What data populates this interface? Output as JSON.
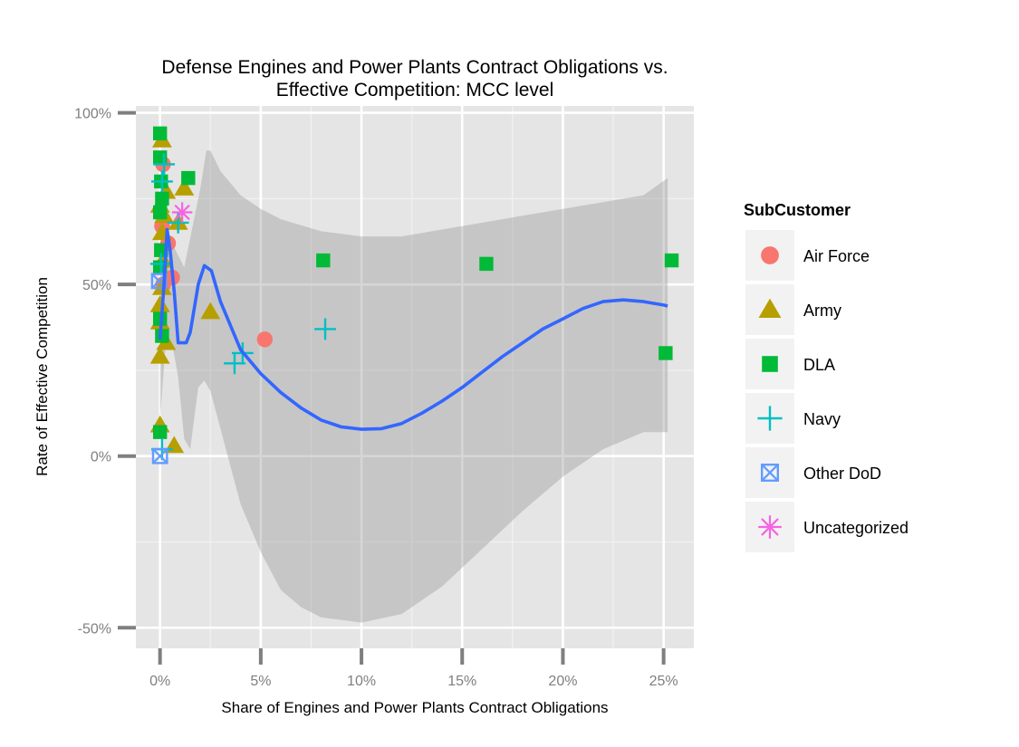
{
  "chart_data": {
    "type": "scatter",
    "title_lines": [
      "Defense Engines and Power Plants Contract Obligations vs.",
      "Effective Competition: MCC level"
    ],
    "xlabel": "Share of Engines and Power Plants Contract Obligations",
    "ylabel": "Rate of Effective Competition",
    "xlim": [
      -0.012,
      0.265
    ],
    "ylim": [
      -0.56,
      1.02
    ],
    "x_ticks": [
      {
        "value": 0.0,
        "label": "0%"
      },
      {
        "value": 0.05,
        "label": "5%"
      },
      {
        "value": 0.1,
        "label": "10%"
      },
      {
        "value": 0.15,
        "label": "15%"
      },
      {
        "value": 0.2,
        "label": "20%"
      },
      {
        "value": 0.25,
        "label": "25%"
      }
    ],
    "y_ticks": [
      {
        "value": -0.5,
        "label": "-50%"
      },
      {
        "value": 0.0,
        "label": "0%"
      },
      {
        "value": 0.5,
        "label": "50%"
      },
      {
        "value": 1.0,
        "label": "100%"
      }
    ],
    "grid": true,
    "legend_position": "right",
    "legend_title": "SubCustomer",
    "series": [
      {
        "name": "Air Force",
        "shape": "circle",
        "color": "#F8766D",
        "points": [
          [
            0.0015,
            0.85
          ],
          [
            0.001,
            0.67
          ],
          [
            0.004,
            0.62
          ],
          [
            0.006,
            0.52
          ],
          [
            0.0015,
            0.5
          ],
          [
            0.052,
            0.34
          ]
        ]
      },
      {
        "name": "Army",
        "shape": "triangle",
        "color": "#B79F00",
        "points": [
          [
            0.001,
            0.92
          ],
          [
            0.012,
            0.78
          ],
          [
            0.003,
            0.77
          ],
          [
            0.0,
            0.73
          ],
          [
            0.002,
            0.7
          ],
          [
            0.001,
            0.65
          ],
          [
            0.0015,
            0.57
          ],
          [
            0.001,
            0.49
          ],
          [
            0.0,
            0.44
          ],
          [
            0.0,
            0.39
          ],
          [
            0.003,
            0.33
          ],
          [
            0.0,
            0.29
          ],
          [
            0.0,
            0.09
          ],
          [
            0.007,
            0.03
          ],
          [
            0.025,
            0.42
          ],
          [
            0.009,
            0.68
          ]
        ]
      },
      {
        "name": "DLA",
        "shape": "square",
        "color": "#00BA38",
        "points": [
          [
            0.0,
            0.94
          ],
          [
            0.0,
            0.87
          ],
          [
            0.0005,
            0.8
          ],
          [
            0.001,
            0.75
          ],
          [
            0.0,
            0.71
          ],
          [
            0.0005,
            0.6
          ],
          [
            0.0,
            0.55
          ],
          [
            0.0,
            0.4
          ],
          [
            0.001,
            0.35
          ],
          [
            0.0,
            0.07
          ],
          [
            0.014,
            0.81
          ],
          [
            0.081,
            0.57
          ],
          [
            0.162,
            0.56
          ],
          [
            0.254,
            0.57
          ],
          [
            0.251,
            0.3
          ]
        ]
      },
      {
        "name": "Navy",
        "shape": "plus",
        "color": "#00BFC4",
        "points": [
          [
            0.001,
            0.8
          ],
          [
            0.002,
            0.85
          ],
          [
            0.0005,
            0.56
          ],
          [
            0.001,
            0.02
          ],
          [
            0.009,
            0.68
          ],
          [
            0.037,
            0.27
          ],
          [
            0.041,
            0.3
          ],
          [
            0.082,
            0.37
          ]
        ]
      },
      {
        "name": "Other DoD",
        "shape": "square-x",
        "color": "#619CFF",
        "points": [
          [
            0.0,
            0.0
          ],
          [
            -0.0005,
            0.51
          ]
        ]
      },
      {
        "name": "Uncategorized",
        "shape": "asterisk",
        "color": "#F564E3",
        "points": [
          [
            0.011,
            0.71
          ]
        ]
      }
    ],
    "smooth_line": {
      "color": "#3366FF",
      "points": [
        [
          0.0,
          0.34
        ],
        [
          0.002,
          0.5
        ],
        [
          0.0035,
          0.66
        ],
        [
          0.005,
          0.6
        ],
        [
          0.007,
          0.48
        ],
        [
          0.009,
          0.33
        ],
        [
          0.013,
          0.33
        ],
        [
          0.015,
          0.36
        ],
        [
          0.019,
          0.5
        ],
        [
          0.022,
          0.555
        ],
        [
          0.0255,
          0.54
        ],
        [
          0.03,
          0.45
        ],
        [
          0.04,
          0.31
        ],
        [
          0.05,
          0.24
        ],
        [
          0.06,
          0.185
        ],
        [
          0.07,
          0.14
        ],
        [
          0.08,
          0.105
        ],
        [
          0.09,
          0.085
        ],
        [
          0.1,
          0.078
        ],
        [
          0.11,
          0.08
        ],
        [
          0.12,
          0.095
        ],
        [
          0.13,
          0.125
        ],
        [
          0.14,
          0.16
        ],
        [
          0.15,
          0.2
        ],
        [
          0.16,
          0.245
        ],
        [
          0.17,
          0.29
        ],
        [
          0.18,
          0.33
        ],
        [
          0.19,
          0.37
        ],
        [
          0.2,
          0.4
        ],
        [
          0.21,
          0.43
        ],
        [
          0.22,
          0.45
        ],
        [
          0.23,
          0.455
        ],
        [
          0.24,
          0.45
        ],
        [
          0.25,
          0.44
        ],
        [
          0.252,
          0.437
        ]
      ]
    },
    "confidence_band": {
      "color": "#999999",
      "upper": [
        [
          0.0,
          0.58
        ],
        [
          0.003,
          0.67
        ],
        [
          0.006,
          0.62
        ],
        [
          0.012,
          0.55
        ],
        [
          0.02,
          0.78
        ],
        [
          0.023,
          0.89
        ],
        [
          0.025,
          0.89
        ],
        [
          0.03,
          0.83
        ],
        [
          0.04,
          0.76
        ],
        [
          0.05,
          0.72
        ],
        [
          0.06,
          0.69
        ],
        [
          0.08,
          0.655
        ],
        [
          0.1,
          0.64
        ],
        [
          0.12,
          0.64
        ],
        [
          0.14,
          0.66
        ],
        [
          0.16,
          0.68
        ],
        [
          0.18,
          0.7
        ],
        [
          0.2,
          0.72
        ],
        [
          0.22,
          0.74
        ],
        [
          0.24,
          0.76
        ],
        [
          0.252,
          0.81
        ]
      ],
      "lower": [
        [
          0.0,
          0.1
        ],
        [
          0.003,
          0.35
        ],
        [
          0.006,
          0.33
        ],
        [
          0.009,
          0.23
        ],
        [
          0.012,
          0.05
        ],
        [
          0.015,
          0.02
        ],
        [
          0.019,
          0.2
        ],
        [
          0.022,
          0.22
        ],
        [
          0.025,
          0.19
        ],
        [
          0.03,
          0.08
        ],
        [
          0.04,
          -0.14
        ],
        [
          0.05,
          -0.28
        ],
        [
          0.06,
          -0.39
        ],
        [
          0.07,
          -0.44
        ],
        [
          0.08,
          -0.47
        ],
        [
          0.1,
          -0.485
        ],
        [
          0.12,
          -0.46
        ],
        [
          0.14,
          -0.38
        ],
        [
          0.16,
          -0.27
        ],
        [
          0.18,
          -0.16
        ],
        [
          0.2,
          -0.06
        ],
        [
          0.22,
          0.02
        ],
        [
          0.24,
          0.07
        ],
        [
          0.252,
          0.07
        ]
      ]
    }
  }
}
